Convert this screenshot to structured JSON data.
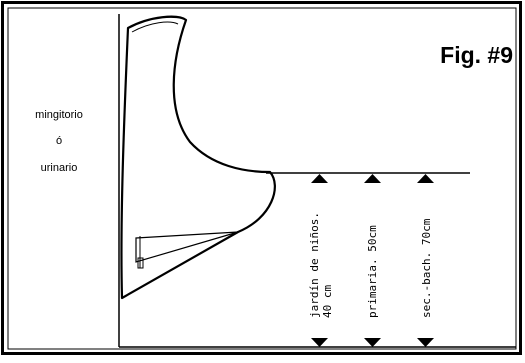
{
  "figure": {
    "label": "Fig. #9"
  },
  "side_label": {
    "line1": "mingitorio",
    "line2": "ó",
    "line3": "urinario"
  },
  "heights": [
    {
      "line1": "jardín de niños.",
      "line2": "40 cm"
    },
    {
      "line1": "primaria. 50cm"
    },
    {
      "line1": "sec.-bach. 70cm"
    }
  ],
  "icons": {
    "up_arrow": "arrow-up-icon",
    "down_arrow": "arrow-down-icon"
  }
}
